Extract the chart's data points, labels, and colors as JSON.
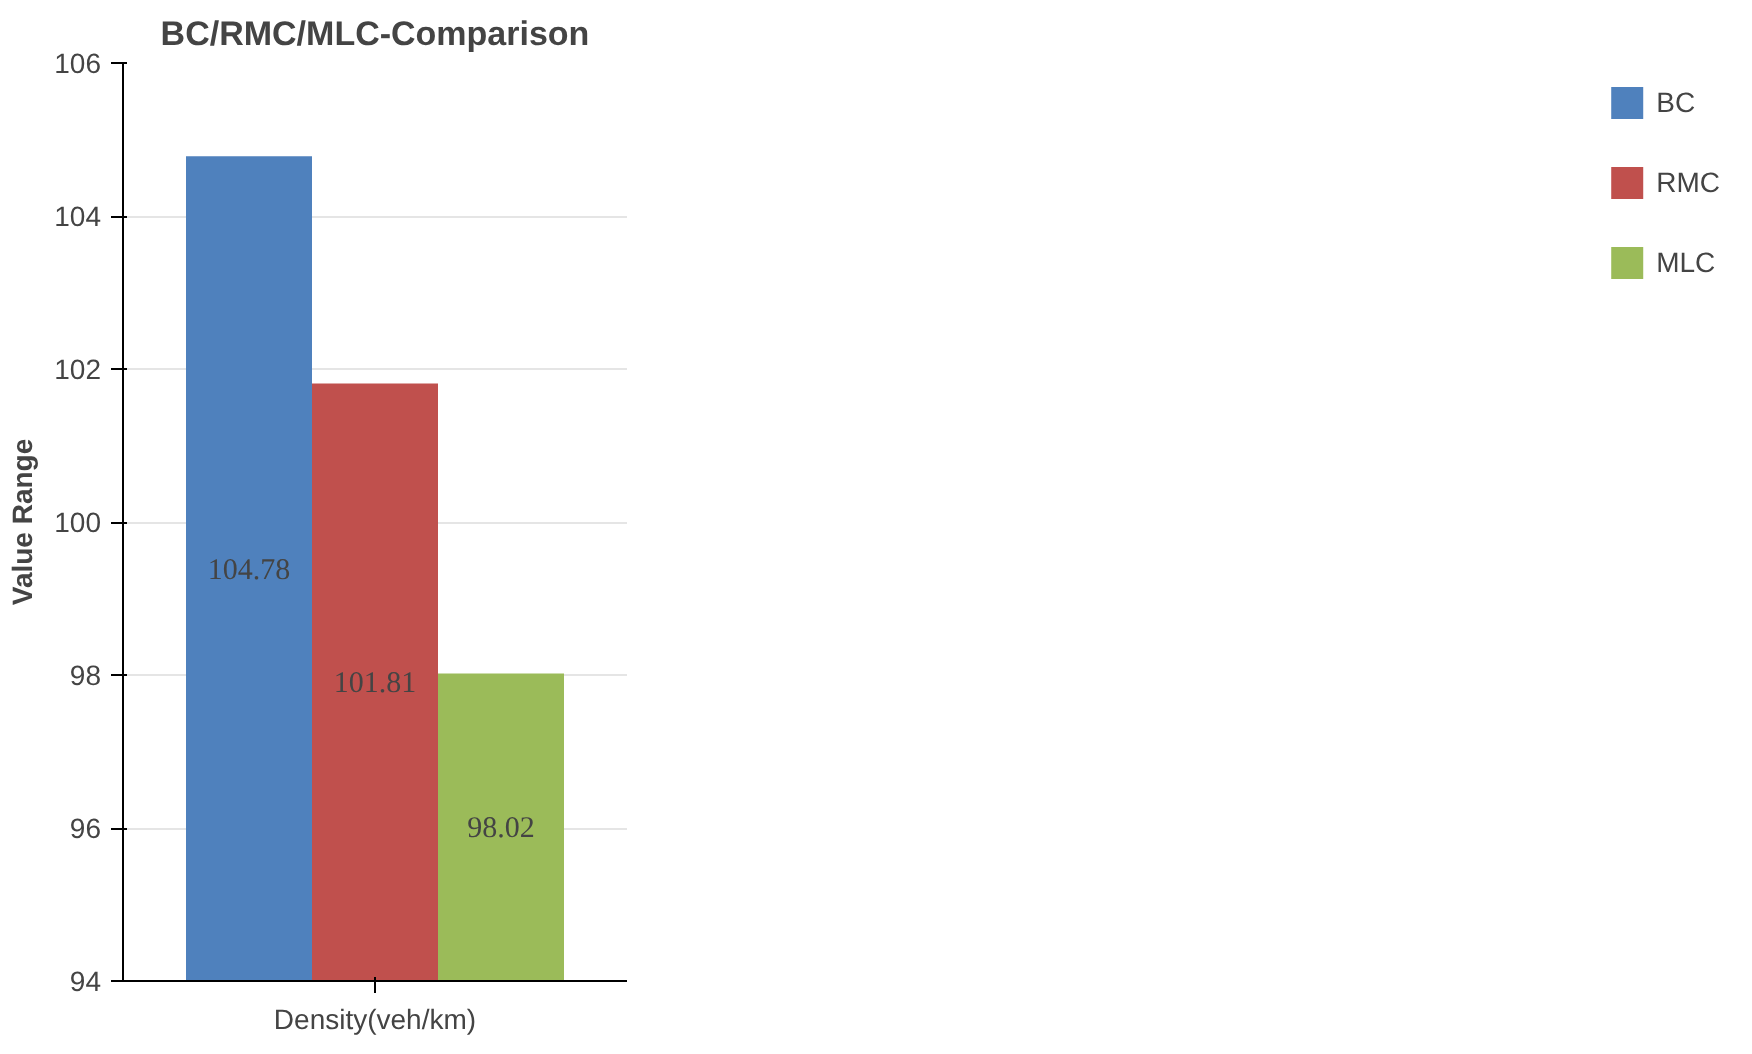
{
  "chart_data": {
    "type": "bar",
    "title": "BC/RMC/MLC-Comparison",
    "xlabel": "Density(veh/km)",
    "ylabel": "Value Range",
    "categories": [
      null
    ],
    "series": [
      {
        "name": "BC",
        "color": "#4f81bd",
        "values": [
          104.78
        ]
      },
      {
        "name": "RMC",
        "color": "#c0504d",
        "values": [
          101.81
        ]
      },
      {
        "name": "MLC",
        "color": "#9bbb59",
        "values": [
          98.02
        ]
      }
    ],
    "ylim": [
      94,
      106
    ],
    "yticks": [
      94,
      96,
      98,
      100,
      102,
      104,
      106
    ],
    "grid": "y",
    "legend": "right",
    "data_labels": true
  }
}
